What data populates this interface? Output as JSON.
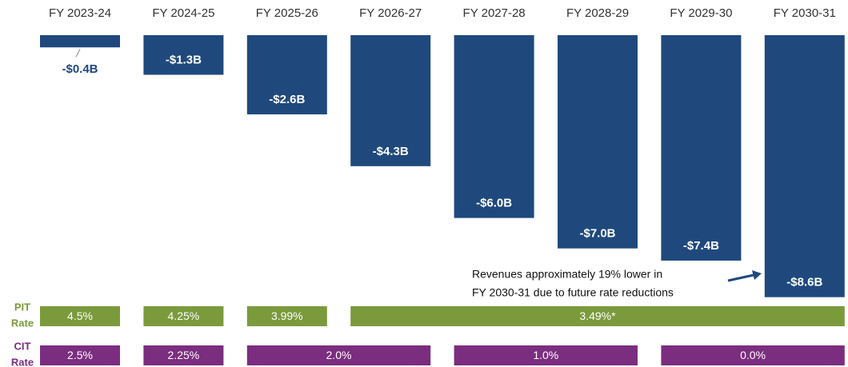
{
  "chart_data": {
    "type": "bar",
    "categories": [
      "FY 2023-24",
      "FY 2024-25",
      "FY 2025-26",
      "FY 2026-27",
      "FY 2027-28",
      "FY 2028-29",
      "FY 2029-30",
      "FY 2030-31"
    ],
    "values": [
      -0.4,
      -1.3,
      -2.6,
      -4.3,
      -6.0,
      -7.0,
      -7.4,
      -8.6
    ],
    "value_labels": [
      "-$0.4B",
      "-$1.3B",
      "-$2.6B",
      "-$4.3B",
      "-$6.0B",
      "-$7.0B",
      "-$7.4B",
      "-$8.6B"
    ],
    "color": "#1f497d",
    "annotation": [
      "Revenues approximately  19% lower in",
      "FY 2030-31 due to future rate reductions"
    ],
    "rate_rows": [
      {
        "name": [
          "PIT",
          "Rate"
        ],
        "color": "#7a9a3c",
        "segments": [
          {
            "value": 4.5,
            "label": "4.5%",
            "from": "FY 2023-24",
            "to": "FY 2023-24"
          },
          {
            "value": 4.25,
            "label": "4.25%",
            "from": "FY 2024-25",
            "to": "FY 2024-25"
          },
          {
            "value": 3.99,
            "label": "3.99%",
            "from": "FY 2025-26",
            "to": "FY 2025-26"
          },
          {
            "value": 3.49,
            "label": "3.49%*",
            "from": "FY 2026-27",
            "to": "FY 2030-31"
          }
        ]
      },
      {
        "name": [
          "CIT",
          "Rate"
        ],
        "color": "#7b2d7f",
        "segments": [
          {
            "value": 2.5,
            "label": "2.5%",
            "from": "FY 2023-24",
            "to": "FY 2023-24"
          },
          {
            "value": 2.25,
            "label": "2.25%",
            "from": "FY 2024-25",
            "to": "FY 2024-25"
          },
          {
            "value": 2.0,
            "label": "2.0%",
            "from": "FY 2025-26",
            "to": "FY 2026-27"
          },
          {
            "value": 1.0,
            "label": "1.0%",
            "from": "FY 2027-28",
            "to": "FY 2028-29"
          },
          {
            "value": 0.0,
            "label": "0.0%",
            "from": "FY 2029-30",
            "to": "FY 2030-31"
          }
        ]
      }
    ]
  }
}
